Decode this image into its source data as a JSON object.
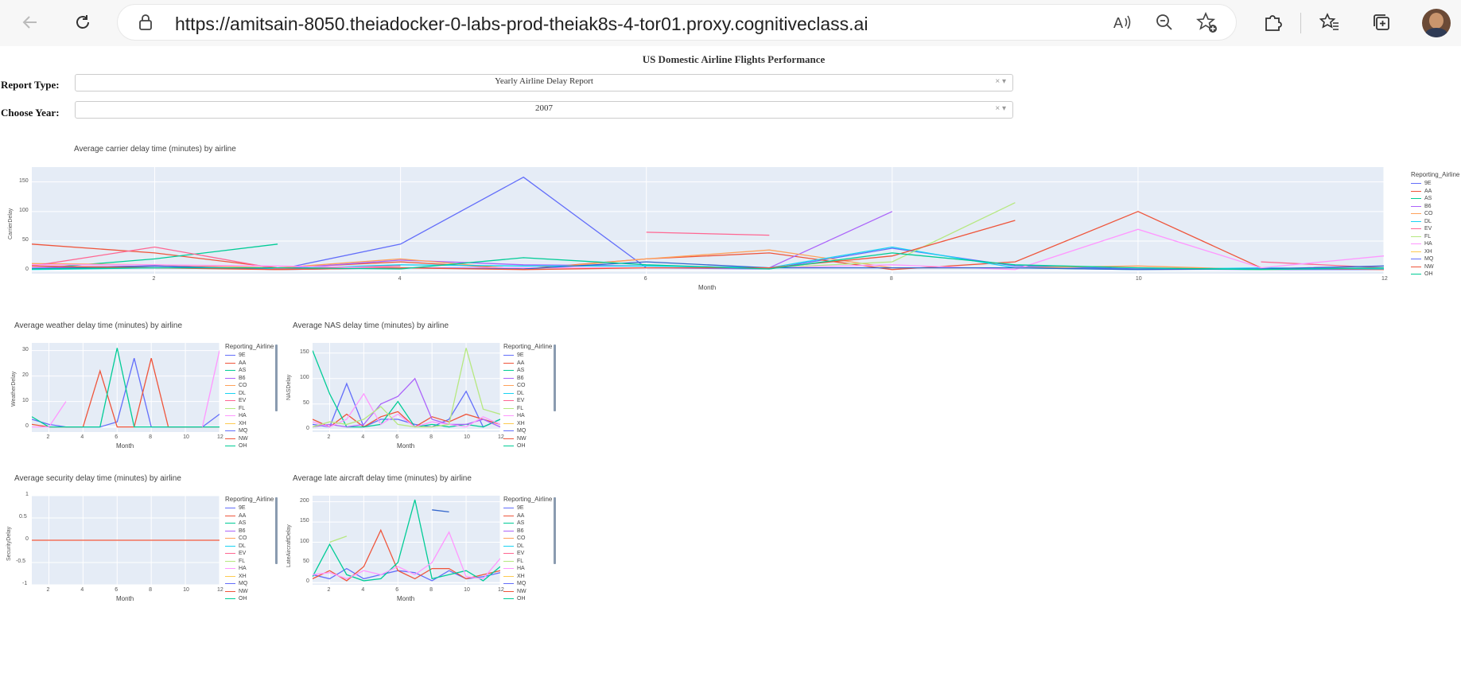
{
  "browser": {
    "url": "https://amitsain-8050.theiadocker-0-labs-prod-theiak8s-4-tor01.proxy.cognitiveclass.ai",
    "icons": [
      "back-arrow-icon",
      "refresh-icon",
      "lock-icon",
      "read-aloud-icon",
      "zoom-out-icon",
      "add-favorite-icon",
      "extensions-icon",
      "favorites-icon",
      "collections-icon",
      "profile-avatar"
    ]
  },
  "dashboard": {
    "title": "US Domestic Airline Flights Performance",
    "report_type_label": "Report Type:",
    "report_type_value": "Yearly Airline Delay Report",
    "year_label": "Choose Year:",
    "year_value": "2007",
    "clear_symbol": "×",
    "caret_symbol": "▾"
  },
  "legend_title": "Reporting_Airline",
  "airlines": [
    "9E",
    "AA",
    "AS",
    "B6",
    "CO",
    "DL",
    "EV",
    "FL",
    "HA",
    "XH",
    "MQ",
    "NW",
    "OH"
  ],
  "airline_colors": [
    "#636efa",
    "#ef553b",
    "#00cc96",
    "#ab63fa",
    "#ffa15a",
    "#19d3f3",
    "#ff6692",
    "#b6e880",
    "#ff97ff",
    "#fecb52",
    "#636efa",
    "#ef553b",
    "#00cc96"
  ],
  "chart_data": [
    {
      "id": "carrier",
      "type": "line",
      "title": "Average carrier delay time (minutes) by airline",
      "xlabel": "Month",
      "ylabel": "CarrierDelay",
      "xticks": [
        2,
        4,
        6,
        8,
        10,
        12
      ],
      "yticks": [
        0,
        50,
        100,
        150
      ],
      "xlim": [
        1,
        12
      ],
      "ylim": [
        -5,
        175
      ],
      "x": [
        1,
        2,
        3,
        4,
        5,
        6,
        7,
        8,
        9,
        10,
        11,
        12
      ],
      "series": [
        {
          "name": "9E",
          "values": [
            5,
            8,
            2,
            45,
            158,
            5,
            3,
            38,
            8,
            3,
            2,
            2
          ]
        },
        {
          "name": "AA",
          "values": [
            45,
            30,
            5,
            15,
            3,
            20,
            30,
            2,
            15,
            100,
            5,
            2
          ]
        },
        {
          "name": "AS",
          "values": [
            3,
            20,
            45,
            null,
            null,
            null,
            null,
            null,
            null,
            null,
            null,
            null
          ]
        },
        {
          "name": "B6",
          "values": [
            5,
            8,
            3,
            18,
            10,
            8,
            5,
            100,
            null,
            null,
            null,
            null
          ]
        },
        {
          "name": "CO",
          "values": [
            12,
            10,
            5,
            20,
            2,
            20,
            35,
            5,
            5,
            8,
            2,
            5
          ]
        },
        {
          "name": "DL",
          "values": [
            2,
            5,
            3,
            10,
            8,
            8,
            5,
            40,
            5,
            2,
            5,
            3
          ]
        },
        {
          "name": "EV",
          "values": [
            8,
            40,
            3,
            8,
            null,
            65,
            60,
            null,
            null,
            null,
            15,
            5
          ]
        },
        {
          "name": "FL",
          "values": [
            null,
            null,
            null,
            null,
            null,
            null,
            5,
            15,
            115,
            null,
            null,
            null
          ]
        },
        {
          "name": "HA",
          "values": [
            10,
            10,
            8,
            5,
            5,
            5,
            5,
            10,
            2,
            70,
            5,
            25
          ]
        },
        {
          "name": "MQ",
          "values": [
            3,
            8,
            2,
            5,
            3,
            15,
            5,
            5,
            5,
            2,
            3,
            8
          ]
        },
        {
          "name": "NW",
          "values": [
            8,
            5,
            2,
            5,
            2,
            5,
            5,
            25,
            85,
            null,
            null,
            null
          ]
        },
        {
          "name": "OH",
          "values": [
            3,
            5,
            5,
            3,
            22,
            10,
            3,
            30,
            10,
            5,
            2,
            5
          ]
        }
      ]
    },
    {
      "id": "weather",
      "type": "line",
      "title": "Average weather delay time (minutes) by airline",
      "xlabel": "Month",
      "ylabel": "WeatherDelay",
      "xticks": [
        2,
        4,
        6,
        8,
        10,
        12
      ],
      "yticks": [
        0,
        10,
        20,
        30
      ],
      "xlim": [
        1,
        12
      ],
      "ylim": [
        -2,
        33
      ],
      "x": [
        1,
        2,
        3,
        4,
        5,
        6,
        7,
        8,
        9,
        10,
        11,
        12
      ],
      "series": [
        {
          "name": "9E",
          "values": [
            3,
            1,
            0,
            0,
            0,
            2,
            27,
            0,
            0,
            0,
            0,
            5
          ]
        },
        {
          "name": "AA",
          "values": [
            1,
            0,
            0,
            0,
            22,
            0,
            0,
            27,
            0,
            0,
            0,
            0
          ]
        },
        {
          "name": "OH",
          "values": [
            4,
            0,
            0,
            0,
            0,
            31,
            0,
            0,
            0,
            0,
            0,
            0
          ]
        },
        {
          "name": "HA",
          "values": [
            0,
            0,
            10,
            null,
            null,
            null,
            null,
            null,
            null,
            null,
            0,
            30
          ]
        }
      ]
    },
    {
      "id": "nas",
      "type": "line",
      "title": "Average NAS delay time (minutes) by airline",
      "xlabel": "Month",
      "ylabel": "NASDelay",
      "xticks": [
        2,
        4,
        6,
        8,
        10,
        12
      ],
      "yticks": [
        0,
        50,
        100,
        150
      ],
      "xlim": [
        1,
        12
      ],
      "ylim": [
        -5,
        170
      ],
      "x": [
        1,
        2,
        3,
        4,
        5,
        6,
        7,
        8,
        9,
        10,
        11,
        12
      ],
      "series": [
        {
          "name": "9E",
          "values": [
            10,
            5,
            90,
            5,
            20,
            20,
            10,
            5,
            20,
            75,
            5,
            20
          ]
        },
        {
          "name": "AA",
          "values": [
            20,
            5,
            30,
            5,
            25,
            35,
            5,
            25,
            15,
            30,
            20,
            10
          ]
        },
        {
          "name": "OH",
          "values": [
            155,
            70,
            5,
            5,
            10,
            55,
            5,
            10,
            5,
            10,
            5,
            20
          ]
        },
        {
          "name": "B6",
          "values": [
            5,
            10,
            5,
            10,
            50,
            65,
            100,
            20,
            10,
            10,
            20,
            5
          ]
        },
        {
          "name": "HA",
          "values": [
            15,
            5,
            20,
            70,
            10,
            30,
            5,
            15,
            10,
            5,
            25,
            10
          ]
        },
        {
          "name": "FL",
          "values": [
            5,
            15,
            10,
            20,
            45,
            10,
            5,
            5,
            10,
            160,
            40,
            30
          ]
        }
      ]
    },
    {
      "id": "security",
      "type": "line",
      "title": "Average security delay time (minutes) by airline",
      "xlabel": "Month",
      "ylabel": "SecurityDelay",
      "xticks": [
        2,
        4,
        6,
        8,
        10,
        12
      ],
      "yticks": [
        -1,
        -0.5,
        0,
        0.5,
        1
      ],
      "xlim": [
        1,
        12
      ],
      "ylim": [
        -1,
        1
      ],
      "x": [
        1,
        2,
        3,
        4,
        5,
        6,
        7,
        8,
        9,
        10,
        11,
        12
      ],
      "series": [
        {
          "name": "AA",
          "values": [
            0,
            0,
            0,
            0,
            0,
            0,
            0,
            0,
            0,
            0,
            0,
            0
          ]
        }
      ]
    },
    {
      "id": "late",
      "type": "line",
      "title": "Average late aircraft delay time (minutes) by airline",
      "xlabel": "Month",
      "ylabel": "LateAircraftDelay",
      "xticks": [
        2,
        4,
        6,
        8,
        10,
        12
      ],
      "yticks": [
        0,
        50,
        100,
        150,
        200
      ],
      "xlim": [
        1,
        12
      ],
      "ylim": [
        -5,
        215
      ],
      "x": [
        1,
        2,
        3,
        4,
        5,
        6,
        7,
        8,
        9,
        10,
        11,
        12
      ],
      "series": [
        {
          "name": "9E",
          "values": [
            20,
            10,
            35,
            10,
            20,
            30,
            25,
            5,
            30,
            10,
            15,
            25
          ]
        },
        {
          "name": "AA",
          "values": [
            10,
            30,
            5,
            40,
            130,
            30,
            10,
            35,
            35,
            10,
            20,
            30
          ]
        },
        {
          "name": "OH",
          "values": [
            15,
            95,
            20,
            5,
            10,
            50,
            205,
            10,
            20,
            30,
            5,
            40
          ]
        },
        {
          "name": "HA",
          "values": [
            20,
            25,
            10,
            30,
            20,
            40,
            20,
            50,
            125,
            15,
            10,
            60
          ]
        },
        {
          "name": "FL",
          "values": [
            null,
            100,
            115,
            null,
            null,
            null,
            null,
            null,
            null,
            null,
            null,
            null
          ]
        },
        {
          "name": "MQ",
          "values": [
            null,
            null,
            null,
            null,
            null,
            null,
            null,
            180,
            175,
            null,
            null,
            null
          ]
        }
      ]
    }
  ]
}
